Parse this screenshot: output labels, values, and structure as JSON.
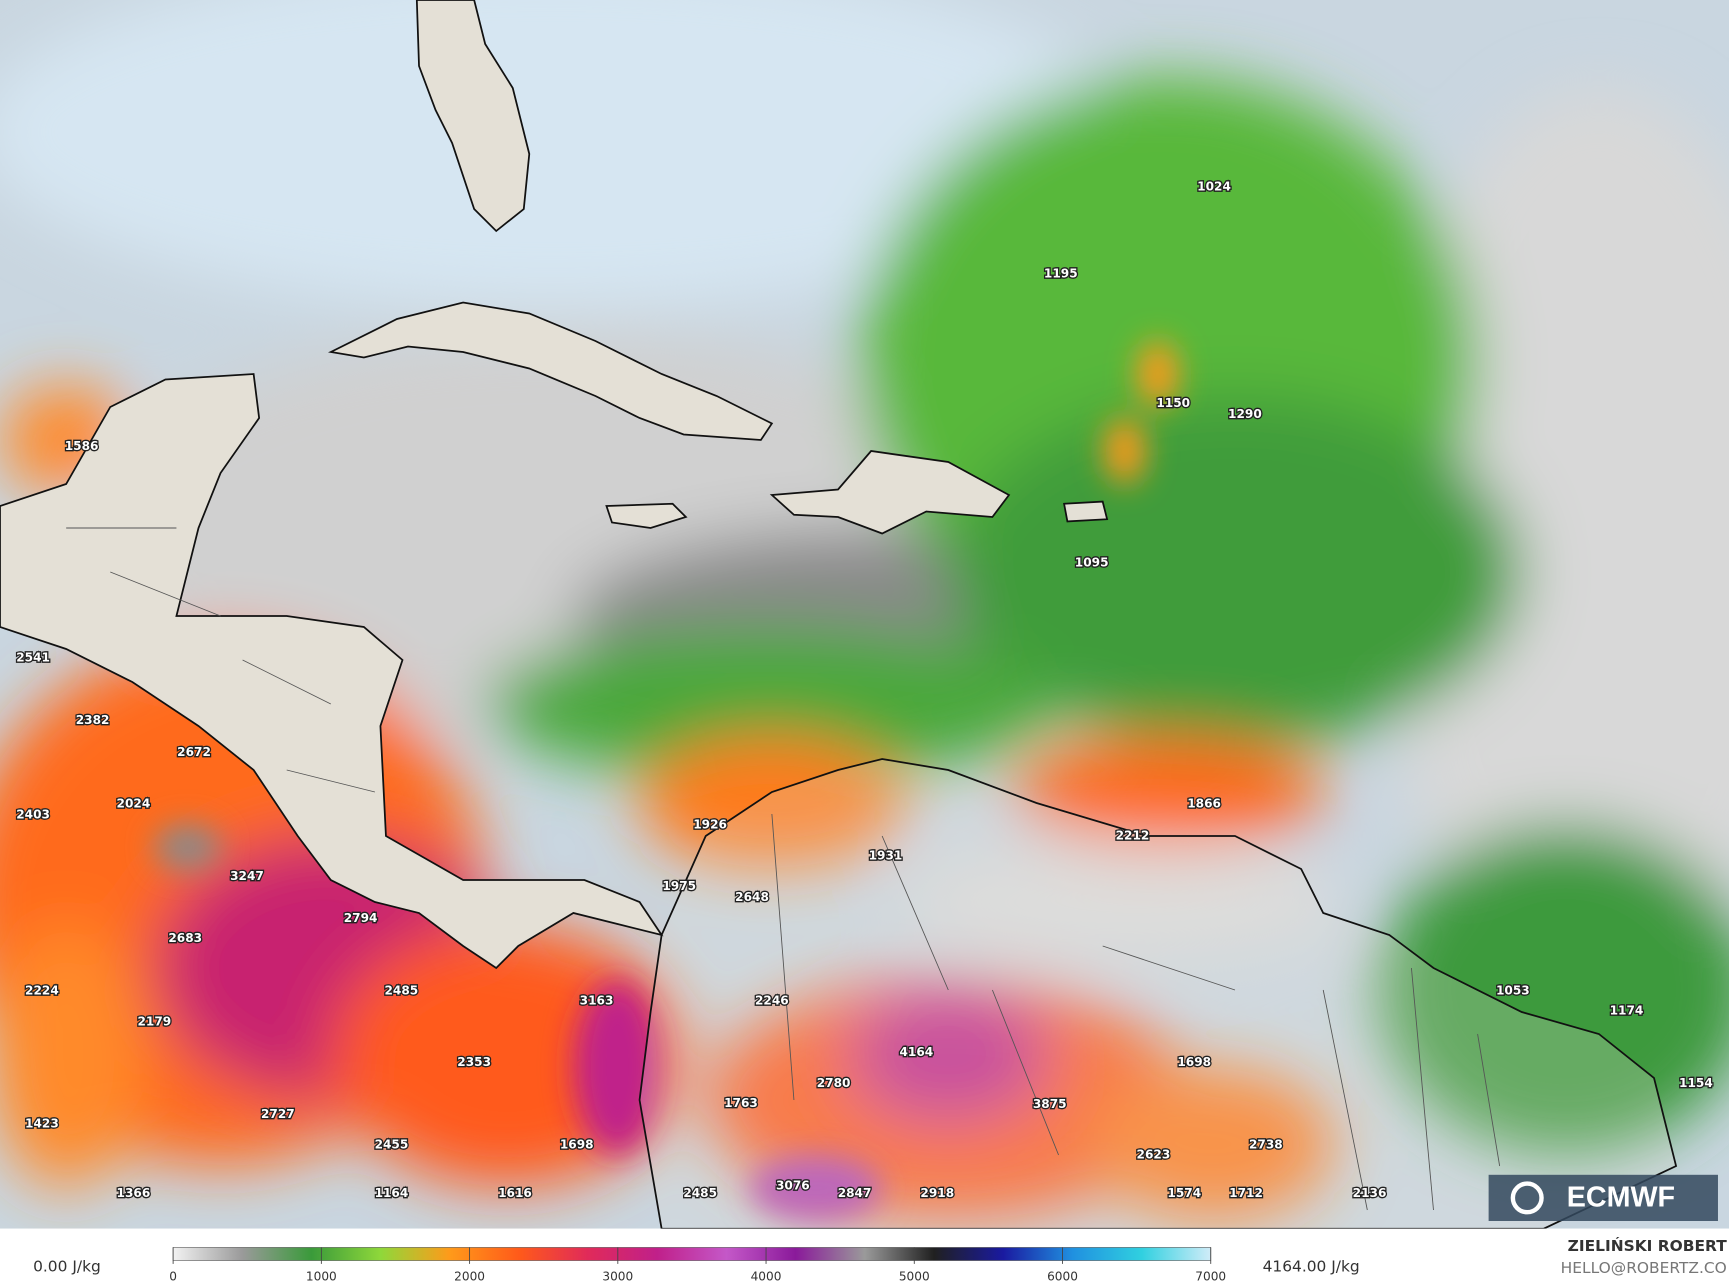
{
  "map": {
    "labels": [
      1024,
      1195,
      1150,
      1290,
      1095,
      1586,
      2541,
      2382,
      2672,
      2403,
      2024,
      3247,
      2794,
      2683,
      2224,
      2179,
      2485,
      3163,
      2353,
      2727,
      2455,
      1698,
      1423,
      1366,
      1164,
      1616,
      1926,
      1931,
      1975,
      2648,
      2246,
      1866,
      2212,
      4164,
      1698,
      3875,
      2780,
      1763,
      2623,
      2738,
      1053,
      1174,
      1154,
      2485,
      3076,
      2847,
      2918,
      1574,
      1712,
      2136
    ],
    "logo": "ECMWF"
  },
  "colorbar": {
    "min_label": "0.00 J/kg",
    "max_label": "4164.00 J/kg",
    "range": [
      0,
      7000
    ],
    "ticks": [
      0,
      1000,
      2000,
      3000,
      4000,
      5000,
      6000,
      7000
    ],
    "colors": [
      "#f2f2f2",
      "#9a9a9a",
      "#3a9a3a",
      "#8fd83a",
      "#ff9a1a",
      "#ff5a1a",
      "#e02a5a",
      "#c0208a",
      "#c458c8",
      "#8a1a9a",
      "#9a9a9a",
      "#202020",
      "#1a1aa0",
      "#2090e0",
      "#30d0e0",
      "#d0ecf8"
    ]
  },
  "credits": {
    "author": "ZIELIŃSKI ROBERT",
    "contact": "HELLO@ROBERTZ.CO"
  }
}
